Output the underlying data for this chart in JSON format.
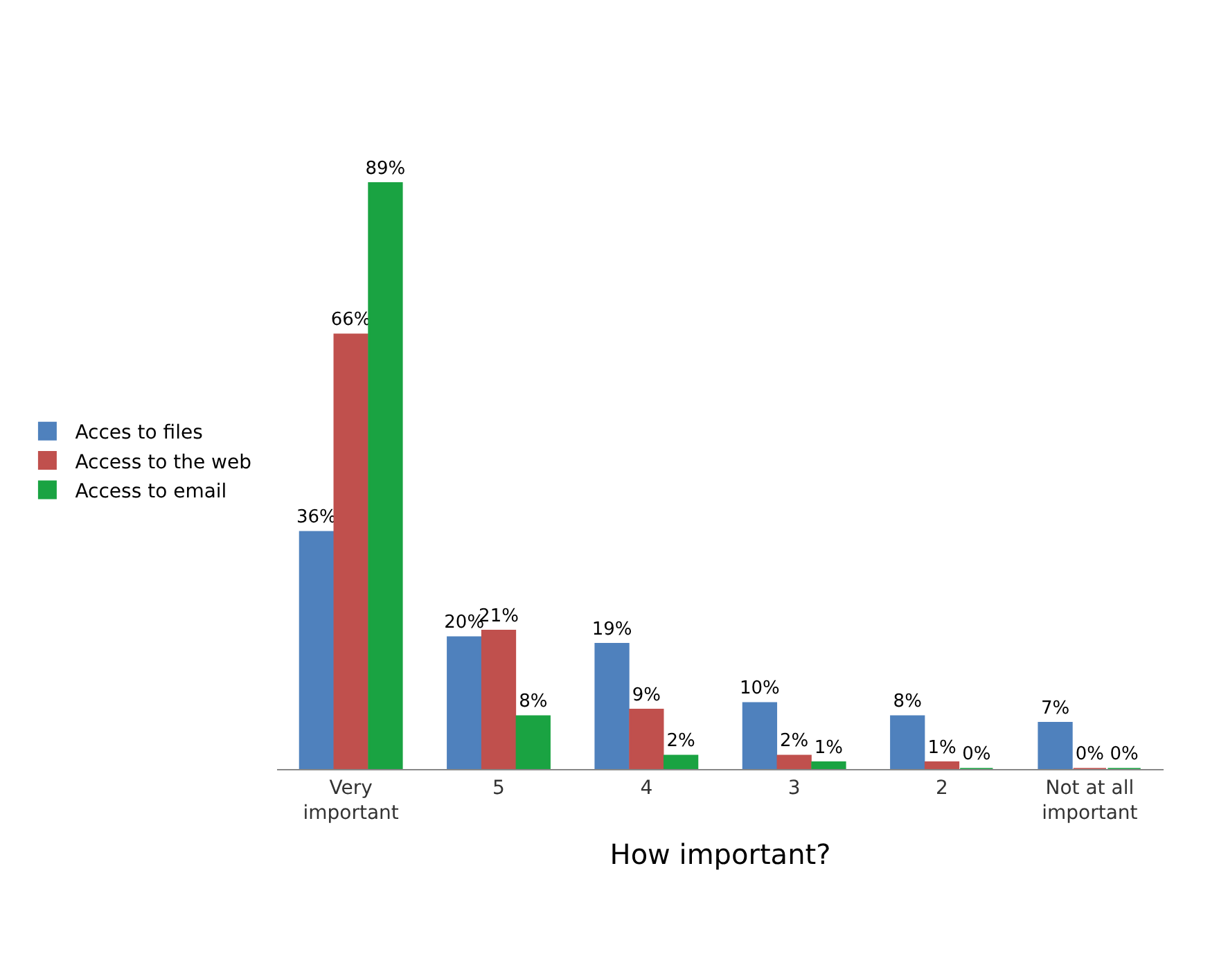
{
  "chart_data": {
    "type": "bar",
    "xlabel": "How important?",
    "categories": [
      "Very important",
      "5",
      "4",
      "3",
      "2",
      "Not at all important"
    ],
    "series": [
      {
        "name": "Acces to files",
        "color": "#4f81bd",
        "values": [
          36,
          20,
          19,
          10,
          8,
          7
        ],
        "value_labels": [
          "36%",
          "20%",
          "19%",
          "10%",
          "8%",
          "7%"
        ]
      },
      {
        "name": "Access to the web",
        "color": "#c0504d",
        "values": [
          66,
          21,
          9,
          2,
          1,
          0
        ],
        "value_labels": [
          "66%",
          "21%",
          "9%",
          "2%",
          "1%",
          "0%"
        ]
      },
      {
        "name": "Access to email",
        "color": "#1aa342",
        "values": [
          89,
          8,
          2,
          1,
          0,
          0
        ],
        "value_labels": [
          "89%",
          "8%",
          "2%",
          "1%",
          "0%",
          "0%"
        ]
      }
    ],
    "tick_labels": "x",
    "legend": "left"
  }
}
